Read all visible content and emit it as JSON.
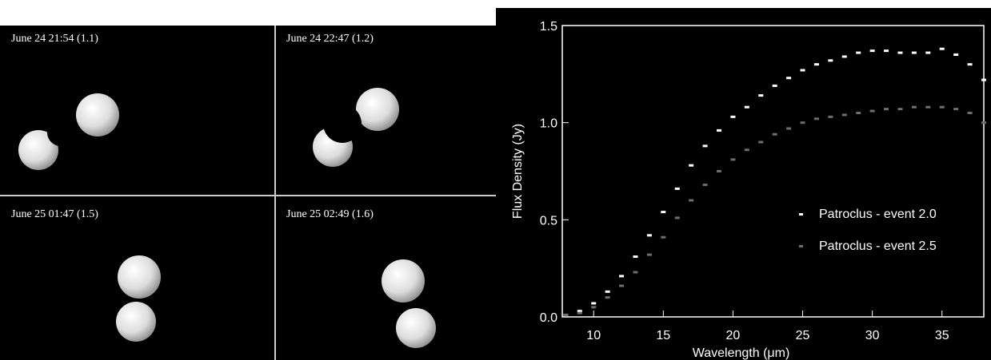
{
  "panels": [
    {
      "label": "June 24 21:54 (1.1)"
    },
    {
      "label": "June 24 22:47 (1.2)"
    },
    {
      "label": "June 25 01:47 (1.5)"
    },
    {
      "label": "June 25 02:49 (1.6)"
    }
  ],
  "chart_data": {
    "type": "scatter",
    "x_label": "Wavelength (μm)",
    "y_label": "Flux Density (Jy)",
    "x": [
      8,
      9,
      10,
      11,
      12,
      13,
      14,
      15,
      16,
      17,
      18,
      19,
      20,
      21,
      22,
      23,
      24,
      25,
      26,
      27,
      28,
      29,
      30,
      31,
      32,
      33,
      34,
      35,
      36,
      37,
      38
    ],
    "series": [
      {
        "name": "Patroclus - event 2.0",
        "color": "#ffffff",
        "values": [
          0.01,
          0.03,
          0.07,
          0.13,
          0.21,
          0.31,
          0.42,
          0.54,
          0.66,
          0.78,
          0.88,
          0.96,
          1.03,
          1.08,
          1.14,
          1.19,
          1.23,
          1.27,
          1.3,
          1.32,
          1.34,
          1.36,
          1.37,
          1.37,
          1.36,
          1.36,
          1.36,
          1.38,
          1.35,
          1.3,
          1.22
        ]
      },
      {
        "name": "Patroclus - event 2.5",
        "color": "#6e6e6e",
        "values": [
          0.01,
          0.02,
          0.05,
          0.1,
          0.16,
          0.23,
          0.32,
          0.41,
          0.51,
          0.6,
          0.68,
          0.75,
          0.81,
          0.86,
          0.9,
          0.94,
          0.97,
          1.0,
          1.02,
          1.03,
          1.04,
          1.05,
          1.06,
          1.07,
          1.07,
          1.08,
          1.08,
          1.08,
          1.07,
          1.05,
          1.0
        ]
      }
    ],
    "xlim": [
      7.75,
      38
    ],
    "ylim": [
      0,
      1.5
    ],
    "xticks": [
      10,
      15,
      20,
      25,
      30,
      35
    ],
    "yticks": [
      {
        "value": 0,
        "label": "0.0"
      },
      {
        "value": 0.5,
        "label": "0.5"
      },
      {
        "value": 1,
        "label": "1.0"
      },
      {
        "value": 1.5,
        "label": "1.5"
      }
    ],
    "legend": "lower-right"
  }
}
